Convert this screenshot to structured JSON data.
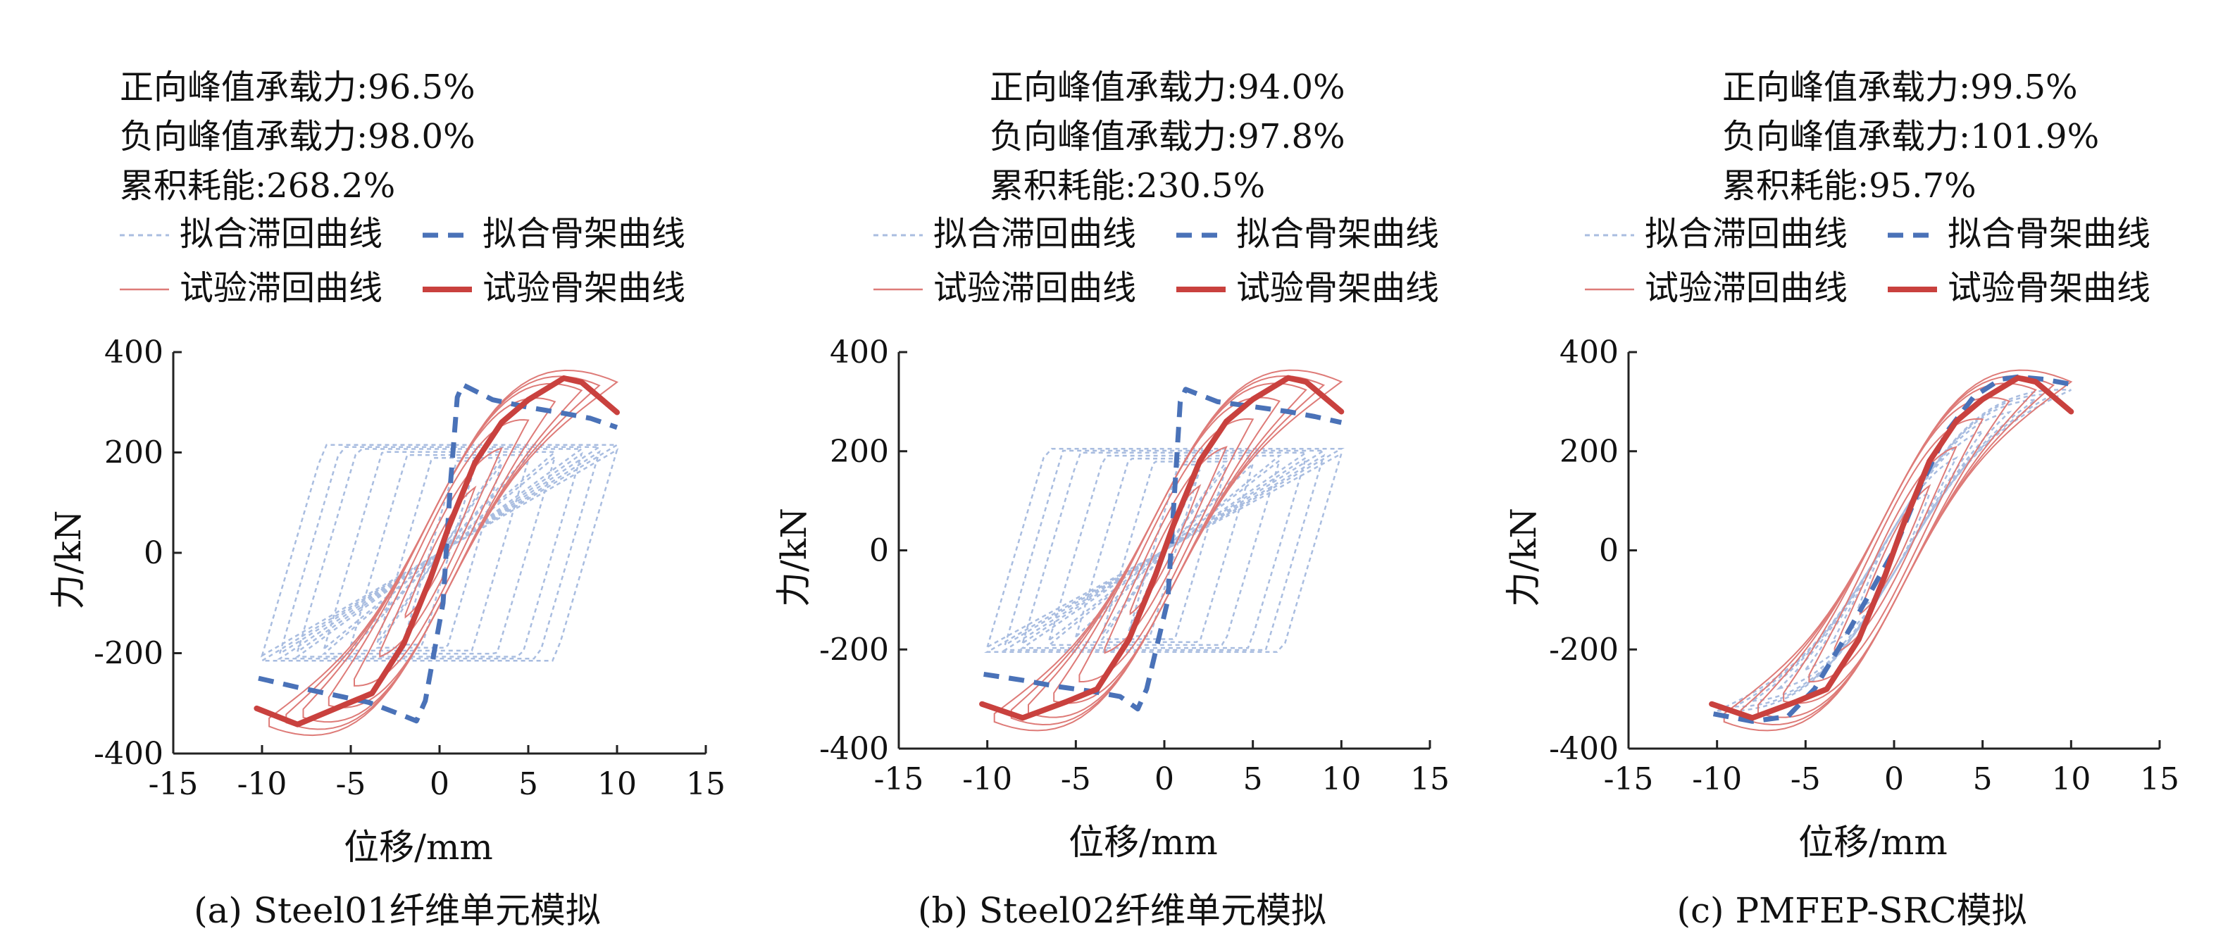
{
  "colors": {
    "fitted": "#4a72b8",
    "fitted_light": "#a9bde0",
    "test": "#c9413e",
    "test_light": "#de7b78"
  },
  "chart_data": [
    {
      "type": "line",
      "caption": "(a) Steel01纤维单元模拟",
      "xlabel": "位移/mm",
      "ylabel": "力/kN",
      "xlim": [
        -15,
        15
      ],
      "ylim": [
        -400,
        400
      ],
      "xticks": [
        "-15",
        "-10",
        "-5",
        "0",
        "5",
        "10",
        "15"
      ],
      "yticks": [
        "400",
        "200",
        "0",
        "-200",
        "-400"
      ],
      "stats": [
        "正向峰值承载力:96.5%",
        "负向峰值承载力:98.0%",
        "累积耗能:268.2%"
      ],
      "legend": [
        "拟合滞回曲线",
        "拟合骨架曲线",
        "试验滞回曲线",
        "试验骨架曲线"
      ],
      "legend_position": "top",
      "series": [
        {
          "name": "拟合骨架曲线",
          "style": "dashed",
          "x": [
            -10.2,
            -8,
            -6,
            -4,
            -2.5,
            -1.3,
            -0.8,
            0.2,
            0.6,
            1.0,
            1.3,
            3,
            5,
            7,
            8.5,
            10
          ],
          "y": [
            -250,
            -268,
            -283,
            -298,
            -318,
            -335,
            -295,
            -100,
            130,
            310,
            335,
            305,
            290,
            278,
            268,
            250
          ]
        },
        {
          "name": "试验骨架曲线",
          "style": "solid",
          "x": [
            -10.3,
            -8,
            -5.5,
            -3.8,
            -2,
            -0.5,
            0.5,
            2,
            3.5,
            5,
            7,
            8,
            9,
            10
          ],
          "y": [
            -310,
            -342,
            -305,
            -280,
            -180,
            -50,
            50,
            180,
            260,
            305,
            348,
            340,
            310,
            280
          ]
        }
      ]
    },
    {
      "type": "line",
      "caption": "(b) Steel02纤维单元模拟",
      "xlabel": "位移/mm",
      "ylabel": "力/kN",
      "xlim": [
        -15,
        15
      ],
      "ylim": [
        -400,
        400
      ],
      "xticks": [
        "-15",
        "-10",
        "-5",
        "0",
        "5",
        "10",
        "15"
      ],
      "yticks": [
        "400",
        "200",
        "0",
        "-200",
        "-400"
      ],
      "stats": [
        "正向峰值承载力:94.0%",
        "负向峰值承载力:97.8%",
        "累积耗能:230.5%"
      ],
      "legend": [
        "拟合滞回曲线",
        "拟合骨架曲线",
        "试验滞回曲线",
        "试验骨架曲线"
      ],
      "legend_position": "top",
      "series": [
        {
          "name": "拟合骨架曲线",
          "style": "dashed",
          "x": [
            -10.2,
            -8,
            -6,
            -4,
            -2.5,
            -1.5,
            -1.0,
            0.2,
            0.6,
            0.9,
            1.2,
            3,
            5,
            7,
            8.5,
            10
          ],
          "y": [
            -250,
            -262,
            -275,
            -285,
            -295,
            -320,
            -280,
            -100,
            130,
            300,
            325,
            300,
            290,
            280,
            270,
            258
          ]
        },
        {
          "name": "试验骨架曲线",
          "style": "solid",
          "x": [
            -10.3,
            -8,
            -5.5,
            -3.8,
            -2,
            -0.5,
            0.5,
            2,
            3.5,
            5,
            7,
            8,
            9,
            10
          ],
          "y": [
            -310,
            -338,
            -305,
            -280,
            -180,
            -50,
            50,
            180,
            260,
            305,
            348,
            340,
            310,
            280
          ]
        }
      ]
    },
    {
      "type": "line",
      "caption": "(c) PMFEP-SRC模拟",
      "xlabel": "位移/mm",
      "ylabel": "力/kN",
      "xlim": [
        -15,
        15
      ],
      "ylim": [
        -400,
        400
      ],
      "xticks": [
        "-15",
        "-10",
        "-5",
        "0",
        "5",
        "10",
        "15"
      ],
      "yticks": [
        "400",
        "200",
        "0",
        "-200",
        "-400"
      ],
      "stats": [
        "正向峰值承载力:99.5%",
        "负向峰值承载力:101.9%",
        "累积耗能:95.7%"
      ],
      "legend": [
        "拟合滞回曲线",
        "拟合骨架曲线",
        "试验滞回曲线",
        "试验骨架曲线"
      ],
      "legend_position": "top",
      "series": [
        {
          "name": "拟合骨架曲线",
          "style": "dashed",
          "x": [
            -10.2,
            -8,
            -6,
            -4.5,
            -3,
            -1.5,
            0,
            1.5,
            3,
            4.5,
            6,
            7,
            8.5,
            10
          ],
          "y": [
            -330,
            -345,
            -335,
            -280,
            -190,
            -95,
            0,
            130,
            240,
            310,
            345,
            350,
            345,
            335
          ]
        },
        {
          "name": "试验骨架曲线",
          "style": "solid",
          "x": [
            -10.3,
            -8,
            -5.5,
            -3.8,
            -2,
            -0.5,
            0.5,
            2,
            3.5,
            5,
            7,
            8,
            9,
            10
          ],
          "y": [
            -310,
            -338,
            -305,
            -280,
            -180,
            -50,
            50,
            180,
            260,
            305,
            348,
            340,
            310,
            280
          ]
        }
      ]
    }
  ]
}
